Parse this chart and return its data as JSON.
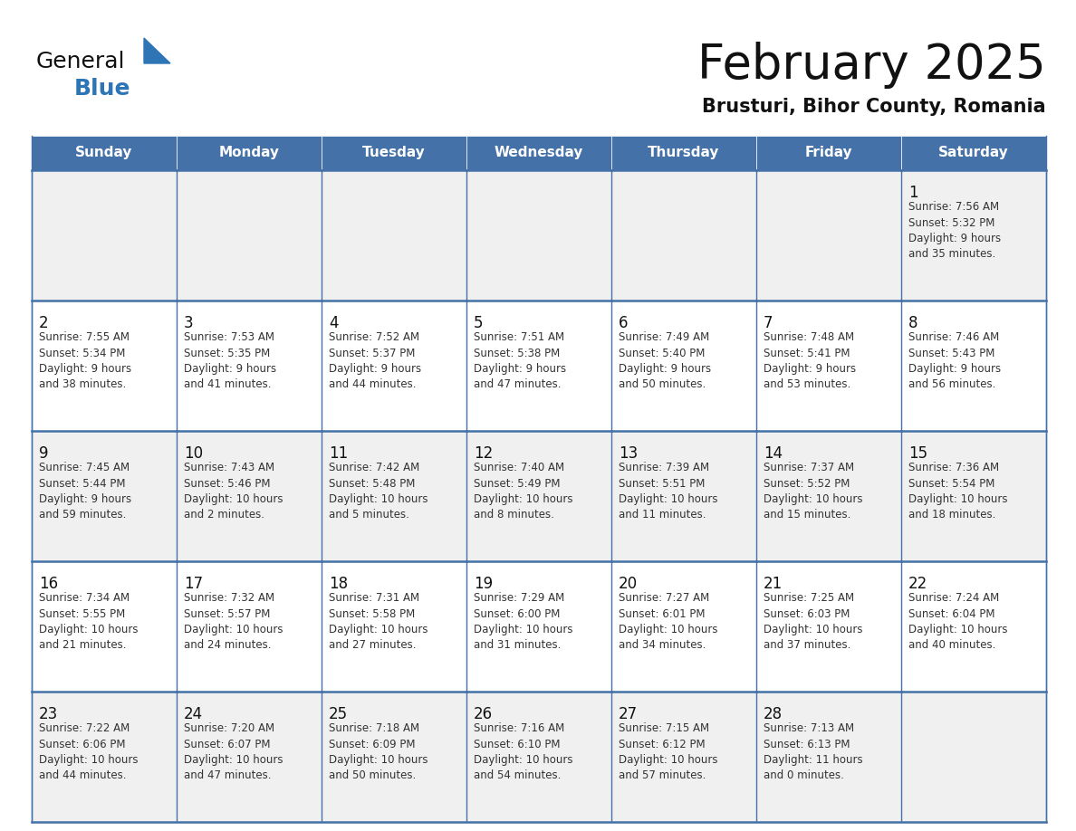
{
  "title": "February 2025",
  "subtitle": "Brusturi, Bihor County, Romania",
  "header_bg": "#4472a8",
  "header_text": "#ffffff",
  "cell_border_color": "#4472a8",
  "cell_bg_gray": "#f0f0f0",
  "cell_bg_white": "#ffffff",
  "title_color": "#111111",
  "subtitle_color": "#111111",
  "text_color": "#333333",
  "day_num_color": "#111111",
  "logo_general_color": "#111111",
  "logo_blue_color": "#2e75b6",
  "day_headers": [
    "Sunday",
    "Monday",
    "Tuesday",
    "Wednesday",
    "Thursday",
    "Friday",
    "Saturday"
  ],
  "calendar_data": [
    [
      null,
      null,
      null,
      null,
      null,
      null,
      {
        "day": 1,
        "sunrise": "7:56 AM",
        "sunset": "5:32 PM",
        "daylight": "9 hours\nand 35 minutes."
      }
    ],
    [
      {
        "day": 2,
        "sunrise": "7:55 AM",
        "sunset": "5:34 PM",
        "daylight": "9 hours\nand 38 minutes."
      },
      {
        "day": 3,
        "sunrise": "7:53 AM",
        "sunset": "5:35 PM",
        "daylight": "9 hours\nand 41 minutes."
      },
      {
        "day": 4,
        "sunrise": "7:52 AM",
        "sunset": "5:37 PM",
        "daylight": "9 hours\nand 44 minutes."
      },
      {
        "day": 5,
        "sunrise": "7:51 AM",
        "sunset": "5:38 PM",
        "daylight": "9 hours\nand 47 minutes."
      },
      {
        "day": 6,
        "sunrise": "7:49 AM",
        "sunset": "5:40 PM",
        "daylight": "9 hours\nand 50 minutes."
      },
      {
        "day": 7,
        "sunrise": "7:48 AM",
        "sunset": "5:41 PM",
        "daylight": "9 hours\nand 53 minutes."
      },
      {
        "day": 8,
        "sunrise": "7:46 AM",
        "sunset": "5:43 PM",
        "daylight": "9 hours\nand 56 minutes."
      }
    ],
    [
      {
        "day": 9,
        "sunrise": "7:45 AM",
        "sunset": "5:44 PM",
        "daylight": "9 hours\nand 59 minutes."
      },
      {
        "day": 10,
        "sunrise": "7:43 AM",
        "sunset": "5:46 PM",
        "daylight": "10 hours\nand 2 minutes."
      },
      {
        "day": 11,
        "sunrise": "7:42 AM",
        "sunset": "5:48 PM",
        "daylight": "10 hours\nand 5 minutes."
      },
      {
        "day": 12,
        "sunrise": "7:40 AM",
        "sunset": "5:49 PM",
        "daylight": "10 hours\nand 8 minutes."
      },
      {
        "day": 13,
        "sunrise": "7:39 AM",
        "sunset": "5:51 PM",
        "daylight": "10 hours\nand 11 minutes."
      },
      {
        "day": 14,
        "sunrise": "7:37 AM",
        "sunset": "5:52 PM",
        "daylight": "10 hours\nand 15 minutes."
      },
      {
        "day": 15,
        "sunrise": "7:36 AM",
        "sunset": "5:54 PM",
        "daylight": "10 hours\nand 18 minutes."
      }
    ],
    [
      {
        "day": 16,
        "sunrise": "7:34 AM",
        "sunset": "5:55 PM",
        "daylight": "10 hours\nand 21 minutes."
      },
      {
        "day": 17,
        "sunrise": "7:32 AM",
        "sunset": "5:57 PM",
        "daylight": "10 hours\nand 24 minutes."
      },
      {
        "day": 18,
        "sunrise": "7:31 AM",
        "sunset": "5:58 PM",
        "daylight": "10 hours\nand 27 minutes."
      },
      {
        "day": 19,
        "sunrise": "7:29 AM",
        "sunset": "6:00 PM",
        "daylight": "10 hours\nand 31 minutes."
      },
      {
        "day": 20,
        "sunrise": "7:27 AM",
        "sunset": "6:01 PM",
        "daylight": "10 hours\nand 34 minutes."
      },
      {
        "day": 21,
        "sunrise": "7:25 AM",
        "sunset": "6:03 PM",
        "daylight": "10 hours\nand 37 minutes."
      },
      {
        "day": 22,
        "sunrise": "7:24 AM",
        "sunset": "6:04 PM",
        "daylight": "10 hours\nand 40 minutes."
      }
    ],
    [
      {
        "day": 23,
        "sunrise": "7:22 AM",
        "sunset": "6:06 PM",
        "daylight": "10 hours\nand 44 minutes."
      },
      {
        "day": 24,
        "sunrise": "7:20 AM",
        "sunset": "6:07 PM",
        "daylight": "10 hours\nand 47 minutes."
      },
      {
        "day": 25,
        "sunrise": "7:18 AM",
        "sunset": "6:09 PM",
        "daylight": "10 hours\nand 50 minutes."
      },
      {
        "day": 26,
        "sunrise": "7:16 AM",
        "sunset": "6:10 PM",
        "daylight": "10 hours\nand 54 minutes."
      },
      {
        "day": 27,
        "sunrise": "7:15 AM",
        "sunset": "6:12 PM",
        "daylight": "10 hours\nand 57 minutes."
      },
      {
        "day": 28,
        "sunrise": "7:13 AM",
        "sunset": "6:13 PM",
        "daylight": "11 hours\nand 0 minutes."
      },
      null
    ]
  ]
}
